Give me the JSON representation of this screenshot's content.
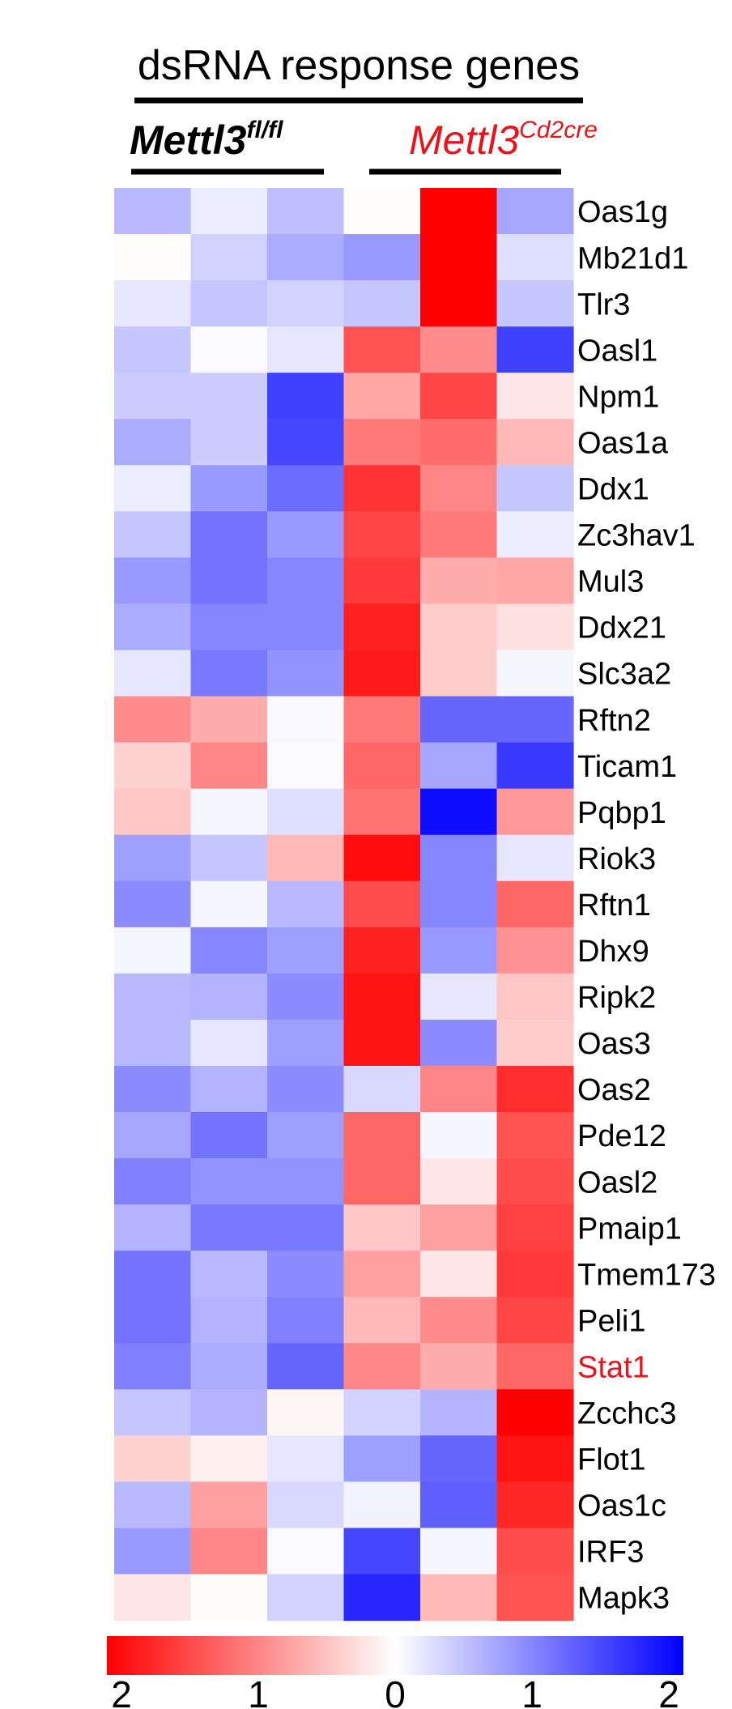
{
  "chart_data": {
    "type": "heatmap",
    "title": "dsRNA response genes",
    "groups": [
      {
        "base": "Mettl3",
        "sup": "fl/fl",
        "color": "#000000",
        "columns": 3
      },
      {
        "base": "Mettl3",
        "sup": "Cd2cre",
        "color": "#e8141b",
        "columns": 3
      }
    ],
    "rows": [
      {
        "label": "Oas1g",
        "values": [
          -0.55,
          -0.15,
          -0.5,
          0.02,
          2.0,
          -0.7
        ],
        "color": "#000000"
      },
      {
        "label": "Mb21d1",
        "values": [
          0.02,
          -0.35,
          -0.65,
          -0.8,
          2.0,
          -0.25
        ],
        "color": "#000000"
      },
      {
        "label": "Tlr3",
        "values": [
          -0.2,
          -0.45,
          -0.35,
          -0.45,
          2.0,
          -0.45
        ],
        "color": "#000000"
      },
      {
        "label": "Oasl1",
        "values": [
          -0.45,
          -0.03,
          -0.2,
          1.35,
          0.9,
          -1.5
        ],
        "color": "#000000"
      },
      {
        "label": "Npm1",
        "values": [
          -0.4,
          -0.4,
          -1.5,
          0.7,
          1.45,
          0.2
        ],
        "color": "#000000"
      },
      {
        "label": "Oas1a",
        "values": [
          -0.65,
          -0.4,
          -1.45,
          1.05,
          1.15,
          0.55
        ],
        "color": "#000000"
      },
      {
        "label": "Ddx1",
        "values": [
          -0.15,
          -0.8,
          -1.15,
          1.6,
          0.95,
          -0.45
        ],
        "color": "#000000"
      },
      {
        "label": "Zc3hav1",
        "values": [
          -0.45,
          -1.1,
          -0.8,
          1.45,
          1.05,
          -0.15
        ],
        "color": "#000000"
      },
      {
        "label": "Mul3",
        "values": [
          -0.8,
          -1.1,
          -0.95,
          1.55,
          0.65,
          0.7
        ],
        "color": "#000000"
      },
      {
        "label": "Ddx21",
        "values": [
          -0.65,
          -0.95,
          -0.95,
          1.75,
          0.4,
          0.25
        ],
        "color": "#000000"
      },
      {
        "label": "Slc3a2",
        "values": [
          -0.2,
          -1.05,
          -0.85,
          1.8,
          0.4,
          -0.07
        ],
        "color": "#000000"
      },
      {
        "label": "Rftn2",
        "values": [
          0.9,
          0.65,
          -0.05,
          1.05,
          -1.2,
          -1.2
        ],
        "color": "#000000"
      },
      {
        "label": "Ticam1",
        "values": [
          0.35,
          0.95,
          -0.03,
          1.2,
          -0.7,
          -1.55
        ],
        "color": "#000000"
      },
      {
        "label": "Pqbp1",
        "values": [
          0.45,
          -0.07,
          -0.25,
          1.1,
          -1.9,
          0.8
        ],
        "color": "#000000"
      },
      {
        "label": "Riok3",
        "values": [
          -0.75,
          -0.45,
          0.55,
          1.9,
          -0.95,
          -0.2
        ],
        "color": "#000000"
      },
      {
        "label": "Rftn1",
        "values": [
          -0.9,
          -0.08,
          -0.55,
          1.4,
          -0.95,
          1.2
        ],
        "color": "#000000"
      },
      {
        "label": "Dhx9",
        "values": [
          -0.08,
          -0.95,
          -0.75,
          1.75,
          -0.8,
          0.85
        ],
        "color": "#000000"
      },
      {
        "label": "Ripk2",
        "values": [
          -0.55,
          -0.6,
          -0.9,
          1.85,
          -0.2,
          0.45
        ],
        "color": "#000000"
      },
      {
        "label": "Oas3",
        "values": [
          -0.55,
          -0.2,
          -0.75,
          1.85,
          -0.9,
          0.4
        ],
        "color": "#000000"
      },
      {
        "label": "Oas2",
        "values": [
          -0.9,
          -0.6,
          -0.9,
          -0.3,
          0.95,
          1.65
        ],
        "color": "#000000"
      },
      {
        "label": "Pde12",
        "values": [
          -0.7,
          -1.1,
          -0.75,
          1.2,
          -0.07,
          1.35
        ],
        "color": "#000000"
      },
      {
        "label": "Oasl2",
        "values": [
          -1.0,
          -0.85,
          -0.85,
          1.2,
          0.2,
          1.4
        ],
        "color": "#000000"
      },
      {
        "label": "Pmaip1",
        "values": [
          -0.6,
          -1.05,
          -1.05,
          0.45,
          0.75,
          1.5
        ],
        "color": "#000000"
      },
      {
        "label": "Tmem173",
        "values": [
          -1.1,
          -0.55,
          -0.9,
          0.75,
          0.2,
          1.55
        ],
        "color": "#000000"
      },
      {
        "label": "Peli1",
        "values": [
          -1.1,
          -0.6,
          -1.0,
          0.55,
          0.9,
          1.45
        ],
        "color": "#000000"
      },
      {
        "label": "Stat1",
        "values": [
          -1.0,
          -0.65,
          -1.2,
          0.95,
          0.65,
          1.2
        ],
        "color": "#e8141b"
      },
      {
        "label": "Zcchc3",
        "values": [
          -0.45,
          -0.6,
          0.07,
          -0.35,
          -0.6,
          2.0
        ],
        "color": "#000000"
      },
      {
        "label": "Flot1",
        "values": [
          0.35,
          0.12,
          -0.2,
          -0.75,
          -1.2,
          1.85
        ],
        "color": "#000000"
      },
      {
        "label": "Oas1c",
        "values": [
          -0.55,
          0.75,
          -0.3,
          -0.1,
          -1.25,
          1.7
        ],
        "color": "#000000"
      },
      {
        "label": "IRF3",
        "values": [
          -0.8,
          0.95,
          -0.04,
          -1.45,
          -0.07,
          1.4
        ],
        "color": "#000000"
      },
      {
        "label": "Mapk3",
        "values": [
          0.2,
          0.03,
          -0.35,
          -1.7,
          0.55,
          1.35
        ],
        "color": "#000000"
      }
    ],
    "colorbar": {
      "range": [
        -2,
        2
      ],
      "ticks": [
        "2",
        "1",
        "0",
        "1",
        "2"
      ],
      "colors": {
        "high": "#ff0000",
        "mid": "#ffffff",
        "low": "#0000ff"
      }
    }
  }
}
